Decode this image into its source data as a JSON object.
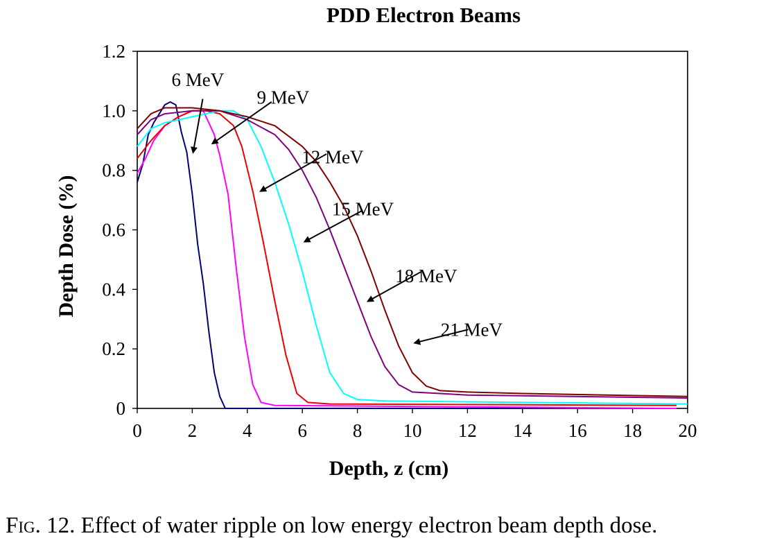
{
  "chart_data": {
    "type": "line",
    "title": "PDD Electron Beams",
    "xlabel": "Depth, z (cm)",
    "ylabel": "Depth Dose (%)",
    "xlim": [
      0,
      20
    ],
    "ylim": [
      0,
      1.2
    ],
    "x_ticks": [
      "0",
      "2",
      "4",
      "6",
      "8",
      "10",
      "12",
      "14",
      "16",
      "18",
      "20"
    ],
    "y_ticks": [
      "0",
      "0.2",
      "0.4",
      "0.6",
      "0.8",
      "1.0",
      "1.2"
    ],
    "grid": false,
    "legend": "none",
    "series": [
      {
        "name": "6 MeV",
        "color": "#00007a",
        "x": [
          0,
          0.2,
          0.4,
          0.6,
          0.8,
          1.0,
          1.2,
          1.4,
          1.6,
          1.8,
          2.0,
          2.2,
          2.4,
          2.6,
          2.8,
          3.0,
          3.2,
          3.5,
          4.0,
          19.6
        ],
        "y": [
          0.76,
          0.82,
          0.92,
          0.96,
          0.99,
          1.02,
          1.03,
          1.02,
          0.93,
          0.86,
          0.72,
          0.55,
          0.42,
          0.26,
          0.12,
          0.04,
          0.0,
          0.0,
          0.0,
          0.0
        ]
      },
      {
        "name": "9 MeV",
        "color": "#ff00ff",
        "x": [
          0,
          0.3,
          0.6,
          1.0,
          1.5,
          2.0,
          2.4,
          2.8,
          3.0,
          3.3,
          3.6,
          3.9,
          4.2,
          4.5,
          5.0,
          19.6
        ],
        "y": [
          0.79,
          0.84,
          0.9,
          0.95,
          0.98,
          1.0,
          1.0,
          0.92,
          0.85,
          0.72,
          0.47,
          0.24,
          0.08,
          0.02,
          0.01,
          0.0
        ]
      },
      {
        "name": "12 MeV",
        "color": "#ee0000",
        "x": [
          0,
          0.5,
          1.0,
          1.5,
          2.0,
          2.5,
          3.0,
          3.5,
          3.8,
          4.2,
          4.6,
          5.0,
          5.4,
          5.8,
          6.2,
          7.0,
          19.6
        ],
        "y": [
          0.84,
          0.9,
          0.95,
          0.98,
          1.0,
          1.0,
          0.99,
          0.95,
          0.88,
          0.73,
          0.55,
          0.36,
          0.18,
          0.05,
          0.02,
          0.015,
          0.01
        ]
      },
      {
        "name": "15 MeV",
        "color": "#00ffff",
        "x": [
          0,
          0.5,
          1.0,
          1.5,
          2.0,
          2.5,
          3.0,
          3.5,
          4.0,
          4.5,
          5.0,
          5.5,
          6.0,
          6.5,
          7.0,
          7.5,
          8.0,
          9.0,
          20.0
        ],
        "y": [
          0.88,
          0.94,
          0.96,
          0.97,
          0.98,
          0.99,
          1.0,
          1.0,
          0.97,
          0.88,
          0.76,
          0.62,
          0.46,
          0.28,
          0.12,
          0.05,
          0.03,
          0.025,
          0.015
        ]
      },
      {
        "name": "18 MeV",
        "color": "#800080",
        "x": [
          0,
          0.5,
          1.0,
          2.0,
          3.0,
          4.0,
          5.0,
          5.5,
          6.0,
          6.5,
          7.0,
          7.5,
          8.0,
          8.5,
          9.0,
          9.5,
          10.0,
          11.0,
          12.0,
          20.0
        ],
        "y": [
          0.92,
          0.97,
          0.99,
          1.0,
          1.0,
          0.97,
          0.92,
          0.87,
          0.8,
          0.71,
          0.6,
          0.48,
          0.36,
          0.24,
          0.14,
          0.08,
          0.055,
          0.05,
          0.045,
          0.035
        ]
      },
      {
        "name": "21 MeV",
        "color": "#800000",
        "x": [
          0,
          0.5,
          1.0,
          2.0,
          3.0,
          4.0,
          5.0,
          6.0,
          6.5,
          7.0,
          7.5,
          8.0,
          8.5,
          9.0,
          9.5,
          10.0,
          10.5,
          11.0,
          12.0,
          14.0,
          20.0
        ],
        "y": [
          0.94,
          0.99,
          1.01,
          1.01,
          1.0,
          0.98,
          0.95,
          0.88,
          0.83,
          0.76,
          0.68,
          0.58,
          0.46,
          0.33,
          0.21,
          0.12,
          0.075,
          0.06,
          0.055,
          0.05,
          0.04
        ]
      }
    ],
    "annotations": [
      {
        "text": "6 MeV",
        "label_at": [
          2.2,
          1.105
        ],
        "arrow_from": [
          2.38,
          1.04
        ],
        "arrow_to": [
          2.03,
          0.86
        ]
      },
      {
        "text": "9 MeV",
        "label_at": [
          5.3,
          1.045
        ],
        "arrow_from": [
          4.88,
          1.03
        ],
        "arrow_to": [
          2.73,
          0.89
        ]
      },
      {
        "text": "12 MeV",
        "label_at": [
          7.1,
          0.845
        ],
        "arrow_from": [
          6.88,
          0.855
        ],
        "arrow_to": [
          4.48,
          0.73
        ]
      },
      {
        "text": "15 MeV",
        "label_at": [
          8.2,
          0.67
        ],
        "arrow_from": [
          8.18,
          0.665
        ],
        "arrow_to": [
          6.08,
          0.56
        ]
      },
      {
        "text": "18 MeV",
        "label_at": [
          10.5,
          0.445
        ],
        "arrow_from": [
          10.33,
          0.46
        ],
        "arrow_to": [
          8.38,
          0.36
        ]
      },
      {
        "text": "21 MeV",
        "label_at": [
          12.15,
          0.265
        ],
        "arrow_from": [
          12.03,
          0.265
        ],
        "arrow_to": [
          10.08,
          0.22
        ]
      }
    ]
  },
  "caption": {
    "prefix": "Fig. 12.",
    "text": "Effect of water ripple on low energy electron beam depth dose."
  }
}
